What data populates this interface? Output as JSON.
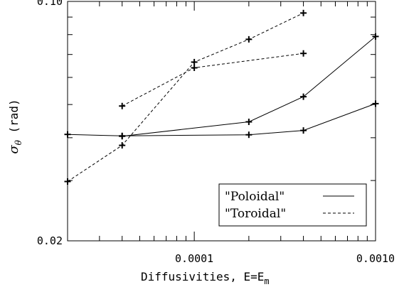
{
  "chart_data": {
    "type": "line",
    "title": "",
    "xlabel": "Diffusivities, E=E",
    "xlabel_subscript": "m",
    "ylabel": "σ",
    "ylabel_subscript": "θ",
    "ylabel_unit": "(rad)",
    "x_scale": "log",
    "y_scale": "log",
    "xlim": [
      2e-05,
      0.001
    ],
    "ylim": [
      0.02,
      0.1
    ],
    "x_ticks": [
      {
        "value": 0.0001,
        "label": "0.0001"
      },
      {
        "value": 0.001,
        "label": "0.0010"
      }
    ],
    "y_ticks": [
      {
        "value": 0.02,
        "label": "0.02"
      },
      {
        "value": 0.1,
        "label": "0.10"
      }
    ],
    "grid": false,
    "legend": {
      "position": "bottom-right",
      "entries": [
        {
          "label": "\"Poloidal\"",
          "style": "solid"
        },
        {
          "label": "\"Toroidal\"",
          "style": "dashed"
        }
      ]
    },
    "series": [
      {
        "style": "solid",
        "x": [
          2e-05,
          4e-05,
          0.0002,
          0.0004,
          0.001
        ],
        "y": [
          0.0409,
          0.0405,
          0.0408,
          0.042,
          0.0503
        ]
      },
      {
        "style": "solid",
        "x": [
          4e-05,
          0.0002,
          0.0004,
          0.001
        ],
        "y": [
          0.0404,
          0.0445,
          0.0527,
          0.079
        ]
      },
      {
        "style": "dashed",
        "x": [
          4e-05,
          0.0001,
          0.0004
        ],
        "y": [
          0.0495,
          0.064,
          0.0705
        ]
      },
      {
        "style": "dashed",
        "x": [
          2e-05,
          4e-05,
          0.0001,
          0.0002,
          0.0004
        ],
        "y": [
          0.0298,
          0.038,
          0.0665,
          0.0775,
          0.0925
        ]
      }
    ]
  }
}
